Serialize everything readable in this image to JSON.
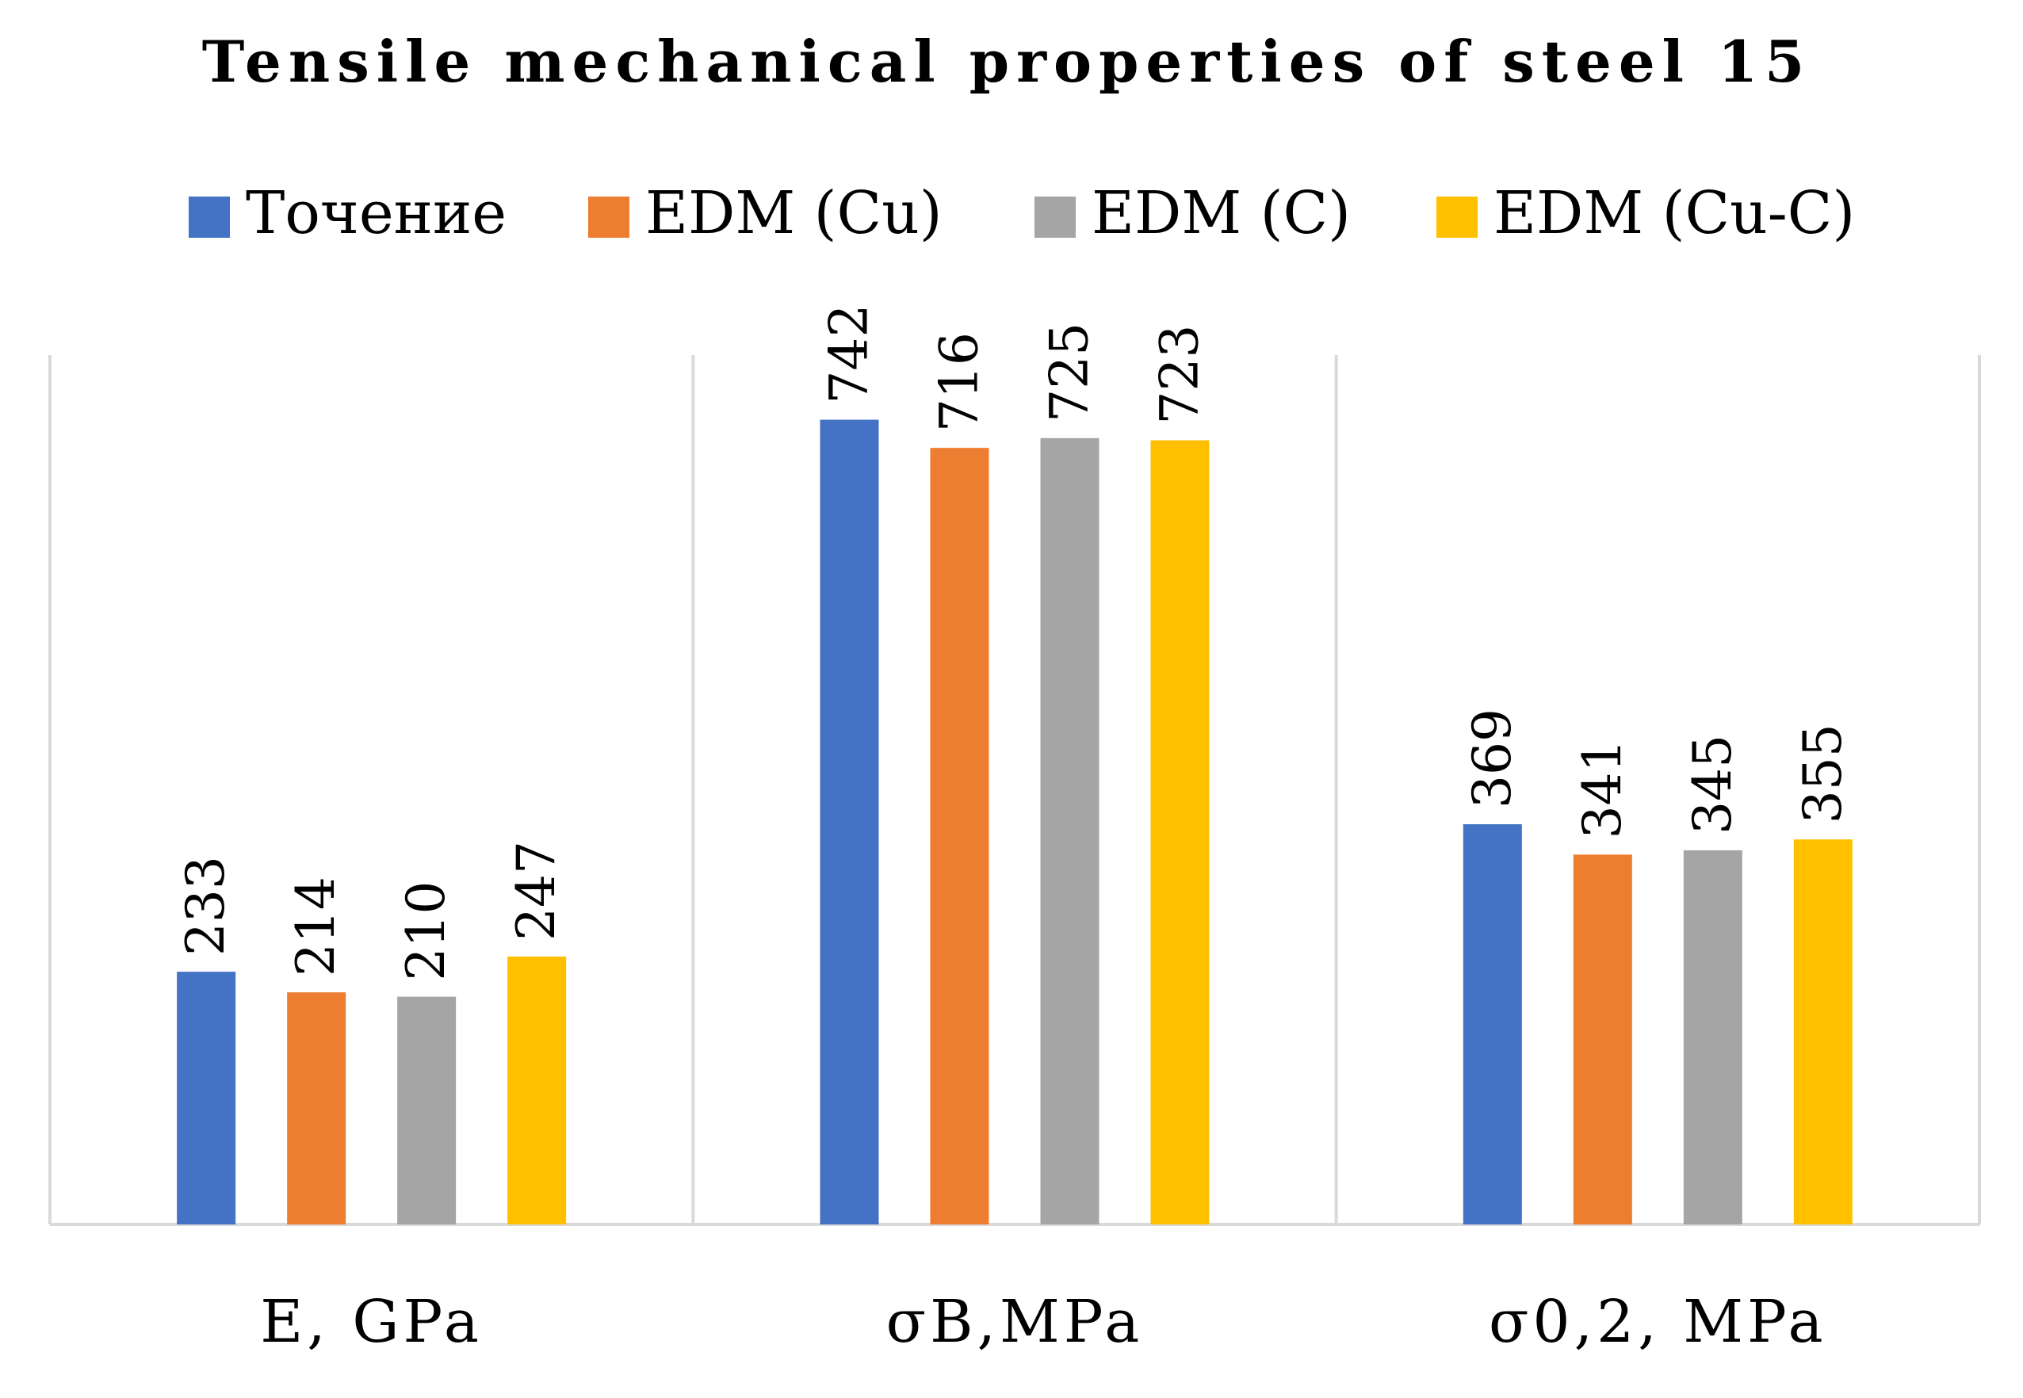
{
  "chart_data": {
    "type": "bar",
    "title": "Tensile mechanical properties of steel 15",
    "categories": [
      "E, GPa",
      "σB,MPa",
      "σ0,2, MPa"
    ],
    "series": [
      {
        "name": "Точение",
        "color": "#4472C4",
        "values": [
          233,
          742,
          369
        ]
      },
      {
        "name": "EDM (Cu)",
        "color": "#ED7D31",
        "values": [
          214,
          716,
          341
        ]
      },
      {
        "name": "EDM (C)",
        "color": "#A5A5A5",
        "values": [
          210,
          725,
          345
        ]
      },
      {
        "name": "EDM (Cu-C)",
        "color": "#FFC000",
        "values": [
          247,
          723,
          355
        ]
      }
    ],
    "xlabel": "",
    "ylabel": "",
    "ylim": [
      0,
      860
    ],
    "grid": "vertical-separators",
    "legend_position": "top",
    "data_labels": "rotated"
  },
  "colors": {
    "gridline": "#D9D9D9",
    "text": "#000000",
    "background": "#FFFFFF"
  }
}
